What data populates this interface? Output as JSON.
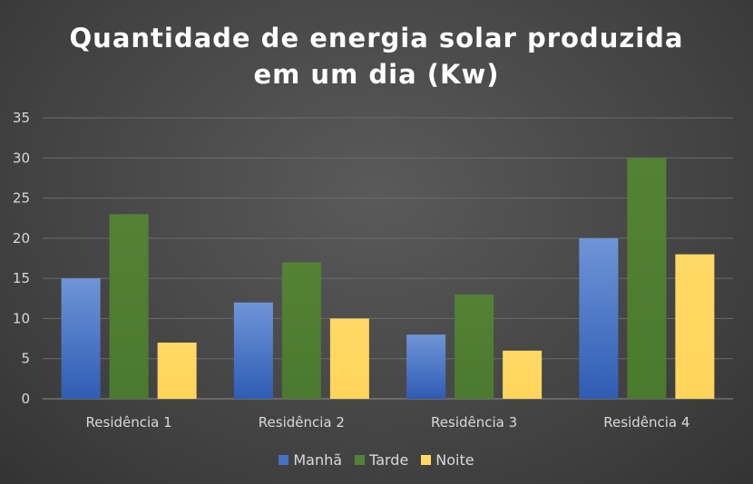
{
  "chart_data": {
    "type": "bar",
    "title_lines": [
      "Quantidade de energia solar produzida",
      "em um dia (Kw)"
    ],
    "categories": [
      "Residência 1",
      "Residência 2",
      "Residência 3",
      "Residência 4"
    ],
    "series": [
      {
        "name": "Manhã",
        "values": [
          15,
          12,
          8,
          20
        ],
        "color": "#4472c4"
      },
      {
        "name": "Tarde",
        "values": [
          23,
          17,
          13,
          30
        ],
        "color": "#548235"
      },
      {
        "name": "Noite",
        "values": [
          7,
          10,
          6,
          18
        ],
        "color": "#ffd966"
      }
    ],
    "ylim": [
      0,
      35
    ],
    "yticks": [
      0,
      5,
      10,
      15,
      20,
      25,
      30,
      35
    ],
    "grid": true,
    "legend_position": "bottom"
  }
}
